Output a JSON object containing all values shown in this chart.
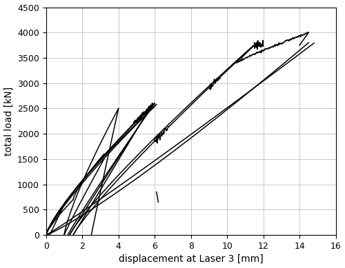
{
  "xlabel": "displacement at Laser 3 [mm]",
  "ylabel": "total load [kN]",
  "xlim": [
    0,
    16
  ],
  "ylim": [
    0,
    4500
  ],
  "xticks": [
    0,
    2,
    4,
    6,
    8,
    10,
    12,
    14,
    16
  ],
  "yticks": [
    0,
    500,
    1000,
    1500,
    2000,
    2500,
    3000,
    3500,
    4000,
    4500
  ],
  "line_color": "#000000",
  "linewidth": 1.1,
  "figsize": [
    5.0,
    3.89
  ],
  "dpi": 100
}
